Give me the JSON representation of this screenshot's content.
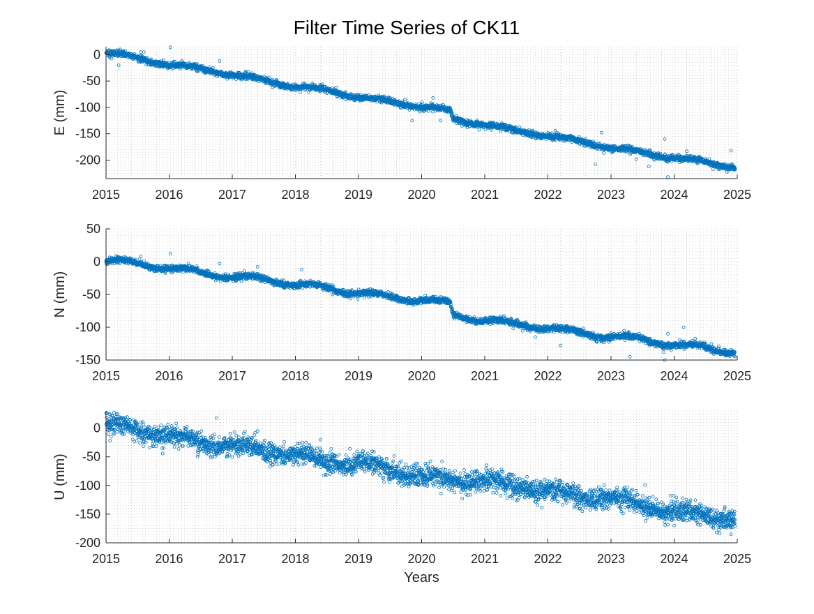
{
  "figure": {
    "title": "Filter Time Series of CK11"
  },
  "colors": {
    "marker": "#0072BD",
    "grid": "#b0b0b0",
    "axis": "#262626"
  },
  "chart_data": [
    {
      "type": "scatter",
      "marker": "open-circle",
      "series": [
        {
          "name": "",
          "color": "#0072BD"
        }
      ],
      "x_tick_labels": [
        "2015",
        "2016",
        "2017",
        "2018",
        "2019",
        "2020",
        "2021",
        "2022",
        "2023",
        "2024",
        "2025"
      ],
      "xlim": [
        2015,
        2025
      ],
      "ylabel": "E (mm)",
      "ylim": [
        -235,
        15
      ],
      "y_tick_labels": [
        "0",
        "-50",
        "-100",
        "-150",
        "-200"
      ],
      "y_ticks": [
        0,
        -50,
        -100,
        -150,
        -200
      ],
      "grid": "minor-dotted",
      "trend": {
        "anchors": [
          [
            2015.0,
            5
          ],
          [
            2015.5,
            -8
          ],
          [
            2016.0,
            -18
          ],
          [
            2016.5,
            -28
          ],
          [
            2017.0,
            -37
          ],
          [
            2017.5,
            -49
          ],
          [
            2018.0,
            -60
          ],
          [
            2018.5,
            -68
          ],
          [
            2019.0,
            -80
          ],
          [
            2019.5,
            -90
          ],
          [
            2020.0,
            -98
          ],
          [
            2020.45,
            -108
          ],
          [
            2020.5,
            -123
          ],
          [
            2021.0,
            -132
          ],
          [
            2021.5,
            -145
          ],
          [
            2022.0,
            -153
          ],
          [
            2022.5,
            -165
          ],
          [
            2023.0,
            -175
          ],
          [
            2023.5,
            -187
          ],
          [
            2024.0,
            -195
          ],
          [
            2024.5,
            -205
          ],
          [
            2025.0,
            -213
          ]
        ],
        "noise_mm": 3,
        "seasonal_amplitude_mm": 3
      },
      "outliers": [
        [
          2015.2,
          -20
        ],
        [
          2015.55,
          5
        ],
        [
          2015.6,
          5
        ],
        [
          2016.02,
          14
        ],
        [
          2016.8,
          -12
        ],
        [
          2020.18,
          -82
        ],
        [
          2020.3,
          -125
        ],
        [
          2020.55,
          -130
        ],
        [
          2019.85,
          -125
        ],
        [
          2022.6,
          -160
        ],
        [
          2022.75,
          -208
        ],
        [
          2022.85,
          -148
        ],
        [
          2023.4,
          -198
        ],
        [
          2023.6,
          -212
        ],
        [
          2023.85,
          -160
        ],
        [
          2023.9,
          -232
        ],
        [
          2024.2,
          -183
        ],
        [
          2024.9,
          -182
        ]
      ]
    },
    {
      "type": "scatter",
      "marker": "open-circle",
      "series": [
        {
          "name": "",
          "color": "#0072BD"
        }
      ],
      "x_tick_labels": [
        "2015",
        "2016",
        "2017",
        "2018",
        "2019",
        "2020",
        "2021",
        "2022",
        "2023",
        "2024",
        "2025"
      ],
      "xlim": [
        2015,
        2025
      ],
      "ylabel": "N (mm)",
      "ylim": [
        -150,
        50
      ],
      "y_tick_labels": [
        "50",
        "0",
        "-50",
        "-100",
        "-150"
      ],
      "y_ticks": [
        50,
        0,
        -50,
        -100,
        -150
      ],
      "grid": "minor-dotted",
      "trend": {
        "anchors": [
          [
            2015.0,
            4
          ],
          [
            2015.5,
            -5
          ],
          [
            2016.0,
            -8
          ],
          [
            2016.5,
            -18
          ],
          [
            2017.0,
            -22
          ],
          [
            2017.5,
            -28
          ],
          [
            2018.0,
            -33
          ],
          [
            2018.5,
            -42
          ],
          [
            2019.0,
            -46
          ],
          [
            2019.5,
            -56
          ],
          [
            2020.0,
            -57
          ],
          [
            2020.45,
            -65
          ],
          [
            2020.5,
            -83
          ],
          [
            2021.0,
            -88
          ],
          [
            2021.5,
            -97
          ],
          [
            2022.0,
            -100
          ],
          [
            2022.5,
            -110
          ],
          [
            2023.0,
            -113
          ],
          [
            2023.5,
            -120
          ],
          [
            2024.0,
            -125
          ],
          [
            2024.5,
            -133
          ],
          [
            2025.0,
            -137
          ]
        ],
        "noise_mm": 2.5,
        "seasonal_amplitude_mm": 4
      },
      "outliers": [
        [
          2015.55,
          8
        ],
        [
          2016.02,
          12
        ],
        [
          2016.8,
          -3
        ],
        [
          2017.4,
          -8
        ],
        [
          2018.1,
          -12
        ],
        [
          2021.8,
          -115
        ],
        [
          2022.2,
          -128
        ],
        [
          2022.85,
          -122
        ],
        [
          2023.3,
          -145
        ],
        [
          2023.85,
          -150
        ],
        [
          2023.9,
          -110
        ],
        [
          2024.15,
          -100
        ],
        [
          2024.5,
          -125
        ]
      ]
    },
    {
      "type": "scatter",
      "marker": "open-circle",
      "series": [
        {
          "name": "",
          "color": "#0072BD"
        }
      ],
      "x_tick_labels": [
        "2015",
        "2016",
        "2017",
        "2018",
        "2019",
        "2020",
        "2021",
        "2022",
        "2023",
        "2024",
        "2025"
      ],
      "xlim": [
        2015,
        2025
      ],
      "ylabel": "U (mm)",
      "ylim": [
        -200,
        30
      ],
      "y_tick_labels": [
        "0",
        "-50",
        "-100",
        "-150",
        "-200"
      ],
      "y_ticks": [
        0,
        -50,
        -100,
        -150,
        -200
      ],
      "xlabel": "Years",
      "grid": "minor-dotted",
      "trend": {
        "anchors": [
          [
            2015.0,
            10
          ],
          [
            2015.5,
            -8
          ],
          [
            2016.0,
            -8
          ],
          [
            2016.5,
            -30
          ],
          [
            2017.0,
            -25
          ],
          [
            2017.5,
            -45
          ],
          [
            2018.0,
            -40
          ],
          [
            2018.5,
            -65
          ],
          [
            2019.0,
            -55
          ],
          [
            2019.5,
            -80
          ],
          [
            2020.0,
            -78
          ],
          [
            2020.5,
            -98
          ],
          [
            2021.0,
            -85
          ],
          [
            2021.5,
            -108
          ],
          [
            2022.0,
            -102
          ],
          [
            2022.5,
            -125
          ],
          [
            2023.0,
            -115
          ],
          [
            2023.5,
            -140
          ],
          [
            2024.0,
            -140
          ],
          [
            2024.5,
            -158
          ],
          [
            2025.0,
            -155
          ]
        ],
        "noise_mm": 9,
        "seasonal_amplitude_mm": 6
      },
      "outliers": [
        [
          2015.05,
          25
        ],
        [
          2015.1,
          22
        ],
        [
          2016.75,
          18
        ],
        [
          2017.4,
          -5
        ],
        [
          2018.4,
          -20
        ],
        [
          2020.1,
          -62
        ],
        [
          2021.6,
          -90
        ],
        [
          2022.2,
          -92
        ],
        [
          2023.1,
          -108
        ],
        [
          2023.6,
          -150
        ],
        [
          2024.0,
          -170
        ],
        [
          2024.9,
          -185
        ]
      ]
    }
  ]
}
